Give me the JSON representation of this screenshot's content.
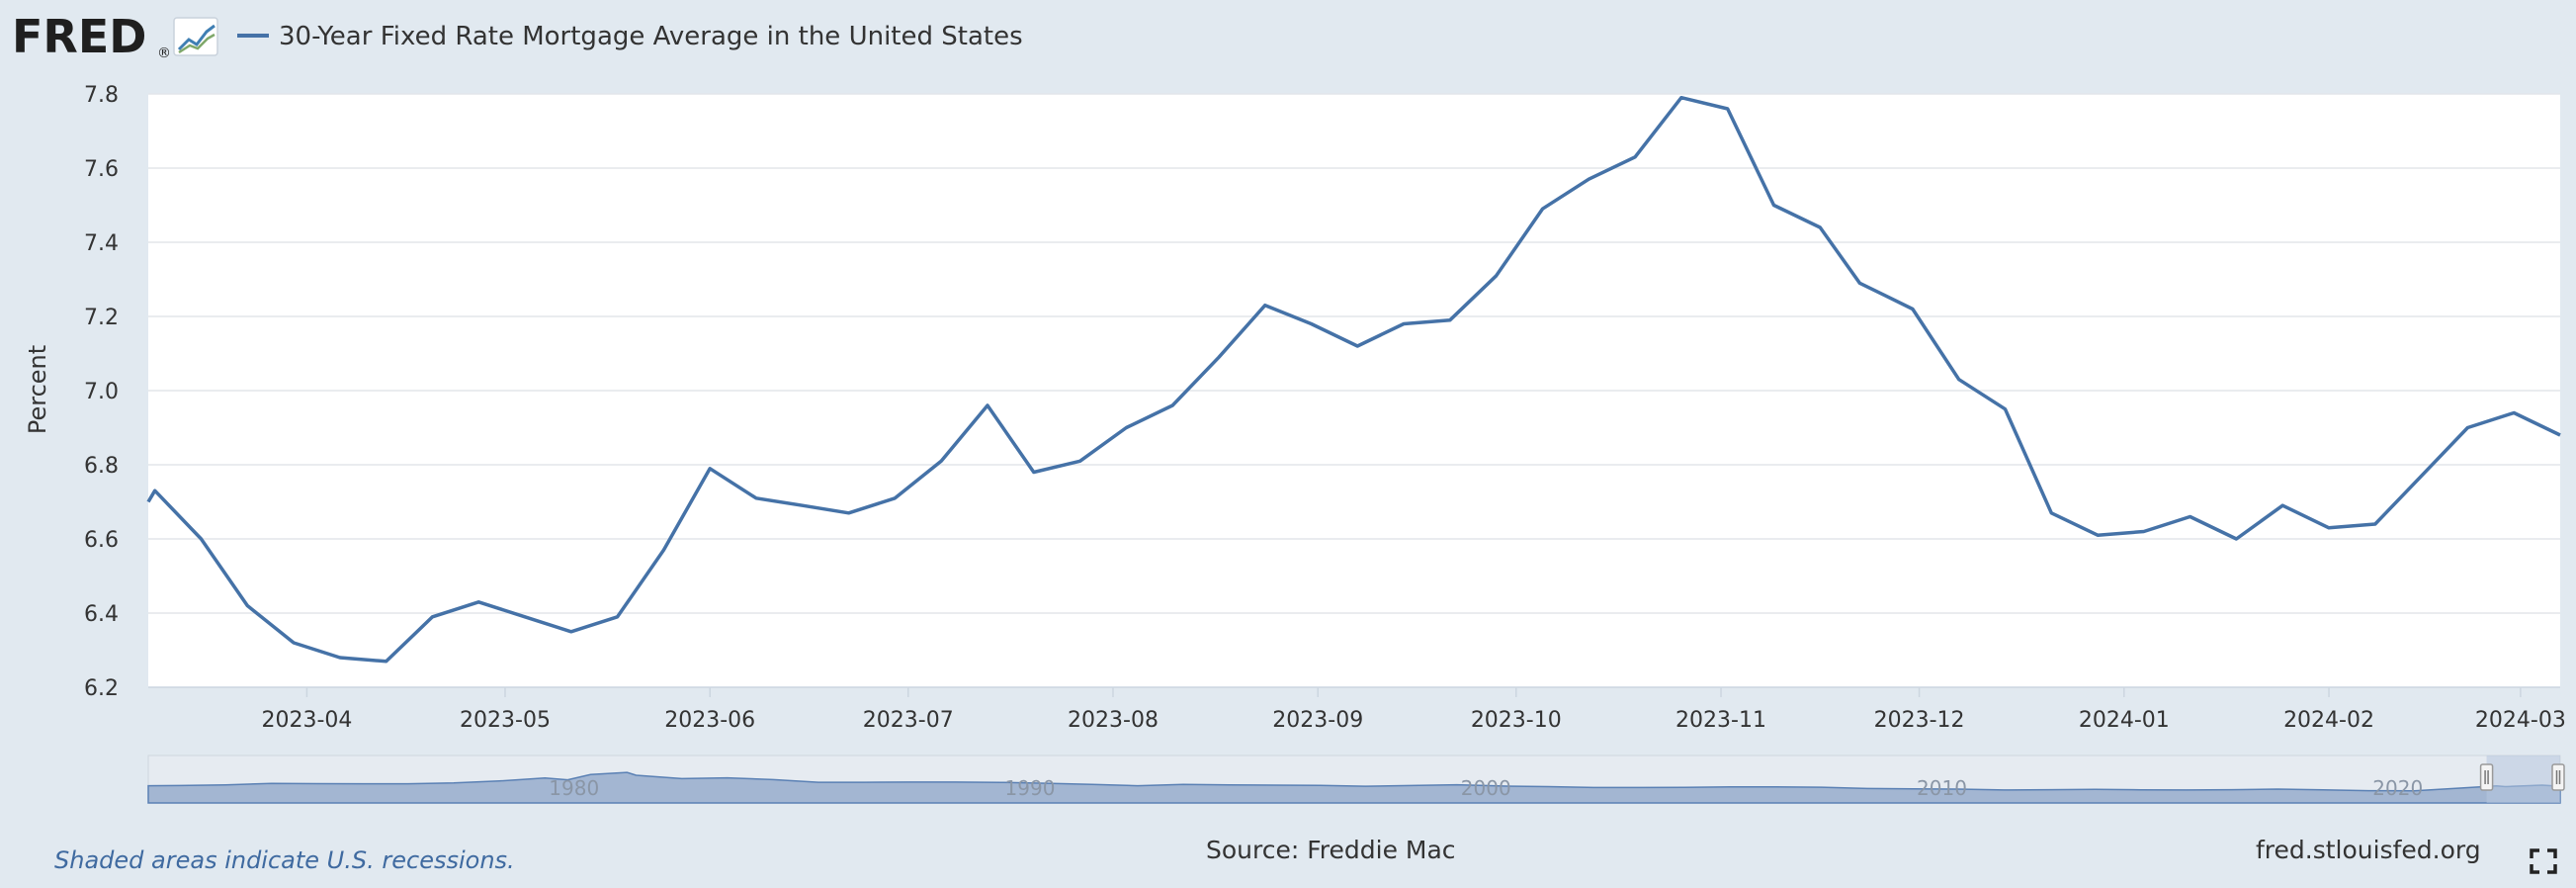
{
  "header": {
    "logo_text": "FRED",
    "logo_mark": "®",
    "series_title": "30-Year Fixed Rate Mortgage Average in the United States"
  },
  "chart_data": {
    "type": "line",
    "title": "30-Year Fixed Rate Mortgage Average in the United States",
    "ylabel": "Percent",
    "xlabel": "",
    "ylim": [
      6.2,
      7.8
    ],
    "xlim": [
      "2023-03-08",
      "2024-03-07"
    ],
    "y_ticks": [
      "6.2",
      "6.4",
      "6.6",
      "6.8",
      "7.0",
      "7.2",
      "7.4",
      "7.6",
      "7.8"
    ],
    "x_ticks": [
      {
        "date": "2023-04-01",
        "label": "2023-04"
      },
      {
        "date": "2023-05-01",
        "label": "2023-05"
      },
      {
        "date": "2023-06-01",
        "label": "2023-06"
      },
      {
        "date": "2023-07-01",
        "label": "2023-07"
      },
      {
        "date": "2023-08-01",
        "label": "2023-08"
      },
      {
        "date": "2023-09-01",
        "label": "2023-09"
      },
      {
        "date": "2023-10-01",
        "label": "2023-10"
      },
      {
        "date": "2023-11-01",
        "label": "2023-11"
      },
      {
        "date": "2023-12-01",
        "label": "2023-12"
      },
      {
        "date": "2024-01-01",
        "label": "2024-01"
      },
      {
        "date": "2024-02-01",
        "label": "2024-02"
      },
      {
        "date": "2024-03-01",
        "label": "2024-03"
      }
    ],
    "grid": true,
    "series": [
      {
        "name": "30-Year Fixed Rate Mortgage Average in the United States",
        "color": "#4572a7",
        "points": [
          [
            "2023-03-09",
            6.73
          ],
          [
            "2023-03-16",
            6.6
          ],
          [
            "2023-03-23",
            6.42
          ],
          [
            "2023-03-30",
            6.32
          ],
          [
            "2023-04-06",
            6.28
          ],
          [
            "2023-04-13",
            6.27
          ],
          [
            "2023-04-20",
            6.39
          ],
          [
            "2023-04-27",
            6.43
          ],
          [
            "2023-05-04",
            6.39
          ],
          [
            "2023-05-11",
            6.35
          ],
          [
            "2023-05-18",
            6.39
          ],
          [
            "2023-05-25",
            6.57
          ],
          [
            "2023-06-01",
            6.79
          ],
          [
            "2023-06-08",
            6.71
          ],
          [
            "2023-06-15",
            6.69
          ],
          [
            "2023-06-22",
            6.67
          ],
          [
            "2023-06-29",
            6.71
          ],
          [
            "2023-07-06",
            6.81
          ],
          [
            "2023-07-13",
            6.96
          ],
          [
            "2023-07-20",
            6.78
          ],
          [
            "2023-07-27",
            6.81
          ],
          [
            "2023-08-03",
            6.9
          ],
          [
            "2023-08-10",
            6.96
          ],
          [
            "2023-08-17",
            7.09
          ],
          [
            "2023-08-24",
            7.23
          ],
          [
            "2023-08-31",
            7.18
          ],
          [
            "2023-09-07",
            7.12
          ],
          [
            "2023-09-14",
            7.18
          ],
          [
            "2023-09-21",
            7.19
          ],
          [
            "2023-09-28",
            7.31
          ],
          [
            "2023-10-05",
            7.49
          ],
          [
            "2023-10-12",
            7.57
          ],
          [
            "2023-10-19",
            7.63
          ],
          [
            "2023-10-26",
            7.79
          ],
          [
            "2023-11-02",
            7.76
          ],
          [
            "2023-11-09",
            7.5
          ],
          [
            "2023-11-16",
            7.44
          ],
          [
            "2023-11-22",
            7.29
          ],
          [
            "2023-11-30",
            7.22
          ],
          [
            "2023-12-07",
            7.03
          ],
          [
            "2023-12-14",
            6.95
          ],
          [
            "2023-12-21",
            6.67
          ],
          [
            "2023-12-28",
            6.61
          ],
          [
            "2024-01-04",
            6.62
          ],
          [
            "2024-01-11",
            6.66
          ],
          [
            "2024-01-18",
            6.6
          ],
          [
            "2024-01-25",
            6.69
          ],
          [
            "2024-02-01",
            6.63
          ],
          [
            "2024-02-08",
            6.64
          ],
          [
            "2024-02-15",
            6.77
          ],
          [
            "2024-02-22",
            6.9
          ],
          [
            "2024-02-29",
            6.94
          ],
          [
            "2024-03-07",
            6.88
          ]
        ]
      }
    ]
  },
  "navigator": {
    "decade_labels": [
      {
        "year": 1980,
        "label": "1980"
      },
      {
        "year": 1990,
        "label": "1990"
      },
      {
        "year": 2000,
        "label": "2000"
      },
      {
        "year": 2010,
        "label": "2010"
      },
      {
        "year": 2020,
        "label": "2020"
      }
    ],
    "range_start_year": 1971.3,
    "range_end_year": 2024.2,
    "history": [
      [
        1971.3,
        7.3
      ],
      [
        1972,
        7.4
      ],
      [
        1973,
        8.0
      ],
      [
        1974,
        9.2
      ],
      [
        1975,
        9.0
      ],
      [
        1976,
        8.9
      ],
      [
        1977,
        8.9
      ],
      [
        1978,
        9.6
      ],
      [
        1979,
        11.2
      ],
      [
        1980,
        13.7
      ],
      [
        1980.5,
        12.2
      ],
      [
        1981,
        16.6
      ],
      [
        1981.8,
        18.4
      ],
      [
        1982,
        16.0
      ],
      [
        1983,
        13.2
      ],
      [
        1984,
        13.9
      ],
      [
        1985,
        12.4
      ],
      [
        1986,
        10.2
      ],
      [
        1987,
        10.2
      ],
      [
        1988,
        10.3
      ],
      [
        1989,
        10.3
      ],
      [
        1990,
        10.1
      ],
      [
        1991,
        9.3
      ],
      [
        1992,
        8.4
      ],
      [
        1993,
        7.3
      ],
      [
        1994,
        8.4
      ],
      [
        1995,
        7.9
      ],
      [
        1996,
        7.8
      ],
      [
        1997,
        7.6
      ],
      [
        1998,
        6.9
      ],
      [
        1999,
        7.4
      ],
      [
        2000,
        8.1
      ],
      [
        2001,
        7.0
      ],
      [
        2002,
        6.5
      ],
      [
        2003,
        5.8
      ],
      [
        2004,
        5.8
      ],
      [
        2005,
        5.9
      ],
      [
        2006,
        6.4
      ],
      [
        2007,
        6.3
      ],
      [
        2008,
        6.0
      ],
      [
        2009,
        5.0
      ],
      [
        2010,
        4.7
      ],
      [
        2011,
        4.5
      ],
      [
        2012,
        3.7
      ],
      [
        2013,
        4.0
      ],
      [
        2014,
        4.2
      ],
      [
        2015,
        3.9
      ],
      [
        2016,
        3.7
      ],
      [
        2017,
        4.0
      ],
      [
        2018,
        4.5
      ],
      [
        2019,
        3.9
      ],
      [
        2020,
        3.1
      ],
      [
        2021,
        3.0
      ],
      [
        2022,
        5.3
      ],
      [
        2022.8,
        7.1
      ],
      [
        2023,
        6.5
      ],
      [
        2023.8,
        7.8
      ],
      [
        2024.2,
        6.9
      ]
    ]
  },
  "footer": {
    "recession_note": "Shaded areas indicate U.S. recessions.",
    "source": "Source: Freddie Mac",
    "site": "fred.stlouisfed.org"
  },
  "colors": {
    "background": "#e1e9f0",
    "plot_background": "#ffffff",
    "line": "#4572a7",
    "gridline": "#e3e6ea",
    "navigator_fill": "#a3b6d2",
    "navigator_stroke": "#5a80b4",
    "navigator_mask": "#b7c7de"
  }
}
